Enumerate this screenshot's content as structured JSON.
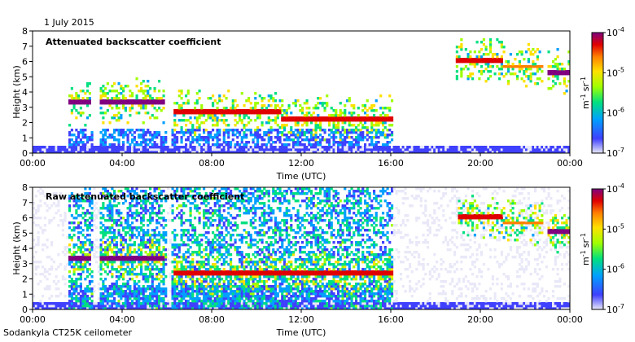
{
  "date_label": "1 July 2015",
  "instrument_label": "Sodankyla CT25K ceilometer",
  "colors": {
    "scale": [
      "#e8e8f8",
      "#4040ff",
      "#00a0ff",
      "#00e080",
      "#a0ff00",
      "#ffe000",
      "#ff8000",
      "#e00000",
      "#800080"
    ]
  },
  "chart_data": [
    {
      "type": "heatmap",
      "title": "Attenuated backscatter coefficient",
      "xlabel": "Time (UTC)",
      "ylabel": "Height (km)",
      "x_ticks": [
        "00:00",
        "04:00",
        "08:00",
        "12:00",
        "16:00",
        "20:00",
        "00:00"
      ],
      "y_ticks": [
        "0",
        "1",
        "2",
        "3",
        "4",
        "5",
        "6",
        "7",
        "8"
      ],
      "xlim_hours": [
        0,
        24
      ],
      "ylim_km": [
        0,
        8
      ],
      "colorbar": {
        "scale": "log",
        "range": [
          1e-07,
          0.0001
        ],
        "tick_labels": [
          {
            "base": "10",
            "exp": "-7"
          },
          {
            "base": "10",
            "exp": "-6"
          },
          {
            "base": "10",
            "exp": "-5"
          },
          {
            "base": "10",
            "exp": "-4"
          }
        ],
        "unit": {
          "a": "m",
          "a_exp": "-1",
          "b": "sr",
          "b_exp": "-1"
        }
      },
      "layers": [
        {
          "name": "cloud-layer",
          "t_start": 1.6,
          "t_end": 2.6,
          "h": 3.3,
          "level": 0.9
        },
        {
          "name": "cloud-layer",
          "t_start": 3.0,
          "t_end": 5.8,
          "h": 3.35,
          "level": 0.9
        },
        {
          "name": "cloud-layer",
          "t_start": 6.2,
          "t_end": 11.0,
          "h": 2.6,
          "level": 0.85
        },
        {
          "name": "cloud-layer",
          "t_start": 11.0,
          "t_end": 16.0,
          "h": 2.2,
          "level": 0.8
        },
        {
          "name": "high-cloud",
          "t_start": 18.8,
          "t_end": 21.0,
          "h": 6.0,
          "level": 0.85
        },
        {
          "name": "high-cloud",
          "t_start": 21.0,
          "t_end": 22.8,
          "h": 5.6,
          "level": 0.75
        },
        {
          "name": "high-cloud",
          "t_start": 23.0,
          "t_end": 24.0,
          "h": 5.2,
          "level": 0.9
        }
      ]
    },
    {
      "type": "heatmap",
      "title": "Raw attenuated backscatter coefficient",
      "xlabel": "Time (UTC)",
      "ylabel": "Height (km)",
      "x_ticks": [
        "00:00",
        "04:00",
        "08:00",
        "12:00",
        "16:00",
        "20:00",
        "00:00"
      ],
      "y_ticks": [
        "0",
        "1",
        "2",
        "3",
        "4",
        "5",
        "6",
        "7",
        "8"
      ],
      "xlim_hours": [
        0,
        24
      ],
      "ylim_km": [
        0,
        8
      ],
      "colorbar": {
        "scale": "log",
        "range": [
          1e-07,
          0.0001
        ],
        "tick_labels": [
          {
            "base": "10",
            "exp": "-7"
          },
          {
            "base": "10",
            "exp": "-6"
          },
          {
            "base": "10",
            "exp": "-5"
          },
          {
            "base": "10",
            "exp": "-4"
          }
        ],
        "unit": {
          "a": "m",
          "a_exp": "-1",
          "b": "sr",
          "b_exp": "-1"
        }
      },
      "layers": [
        {
          "name": "cloud-layer",
          "t_start": 1.6,
          "t_end": 2.6,
          "h": 3.3,
          "level": 0.9
        },
        {
          "name": "cloud-layer",
          "t_start": 3.0,
          "t_end": 5.8,
          "h": 3.35,
          "level": 0.9
        },
        {
          "name": "cloud-layer",
          "t_start": 6.2,
          "t_end": 11.0,
          "h": 2.3,
          "level": 0.85
        },
        {
          "name": "cloud-layer",
          "t_start": 11.0,
          "t_end": 16.0,
          "h": 2.3,
          "level": 0.8
        },
        {
          "name": "high-cloud",
          "t_start": 19.0,
          "t_end": 21.0,
          "h": 6.0,
          "level": 0.85
        },
        {
          "name": "high-cloud",
          "t_start": 21.0,
          "t_end": 22.8,
          "h": 5.6,
          "level": 0.75
        },
        {
          "name": "high-cloud",
          "t_start": 23.0,
          "t_end": 24.0,
          "h": 5.0,
          "level": 0.9
        }
      ]
    }
  ]
}
